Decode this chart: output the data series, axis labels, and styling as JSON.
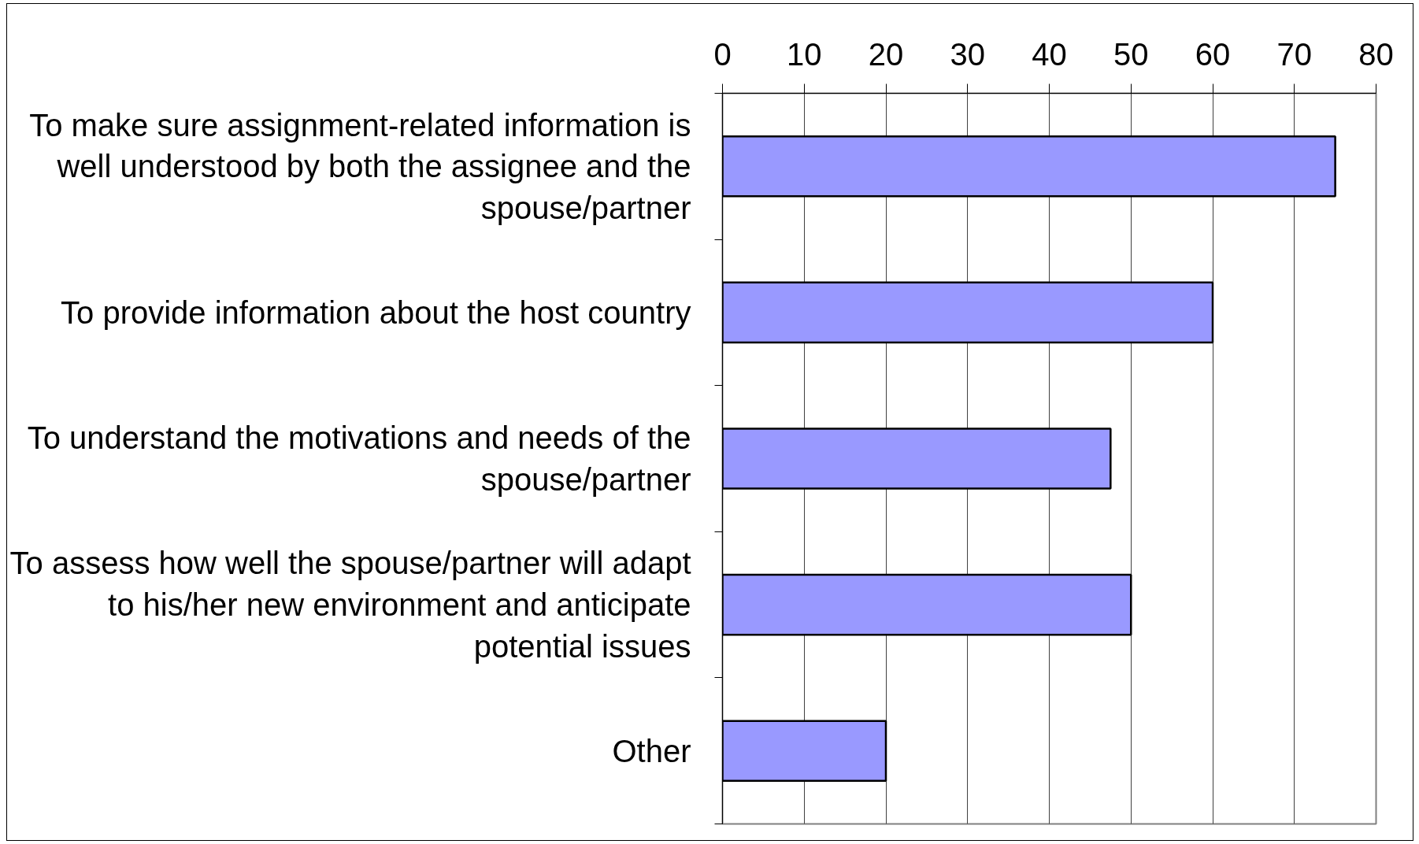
{
  "chart_data": {
    "type": "bar",
    "orientation": "horizontal",
    "categories": [
      "To make sure assignment-related information is well understood by both the assignee and the spouse/partner",
      "To provide information about the host country",
      "To understand the motivations and needs of the spouse/partner",
      "To assess how well the spouse/partner will adapt to his/her new environment and anticipate potential issues",
      "Other"
    ],
    "values": [
      75,
      60,
      47.5,
      50,
      20
    ],
    "color": "#9999ff",
    "xlim": [
      0,
      80
    ],
    "xticks": [
      0,
      10,
      20,
      30,
      40,
      50,
      60,
      70,
      80
    ],
    "grid": "x"
  }
}
